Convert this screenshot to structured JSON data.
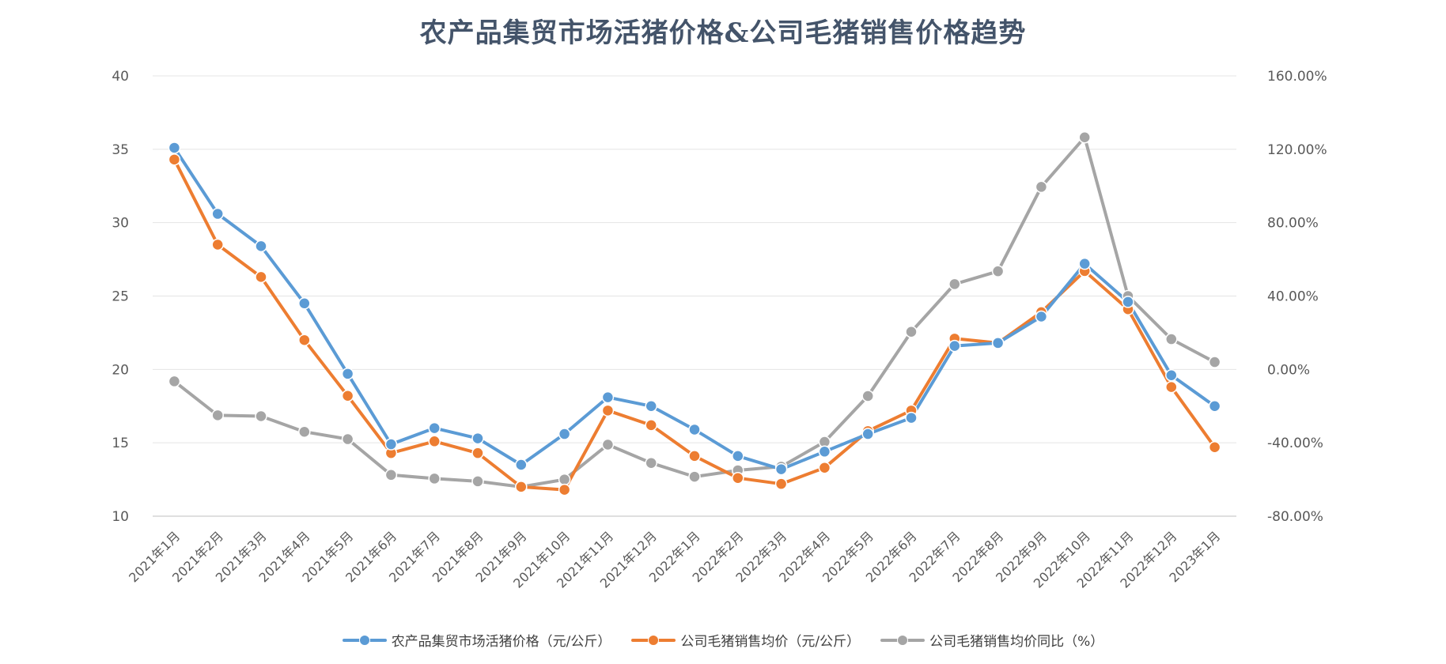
{
  "chart_data": {
    "type": "line",
    "title": "农产品集贸市场活猪价格&公司毛猪销售价格趋势",
    "categories": [
      "2021年1月",
      "2021年2月",
      "2021年3月",
      "2021年4月",
      "2021年5月",
      "2021年6月",
      "2021年7月",
      "2021年8月",
      "2021年9月",
      "2021年10月",
      "2021年11月",
      "2021年12月",
      "2022年1月",
      "2022年2月",
      "2022年3月",
      "2022年4月",
      "2022年5月",
      "2022年6月",
      "2022年7月",
      "2022年8月",
      "2022年9月",
      "2022年10月",
      "2022年11月",
      "2022年12月",
      "2023年1月"
    ],
    "y_left": {
      "ylim": [
        10,
        40
      ],
      "ticks": [
        "10",
        "15",
        "20",
        "25",
        "30",
        "35",
        "40"
      ],
      "tick_values": [
        10,
        15,
        20,
        25,
        30,
        35,
        40
      ]
    },
    "y_right": {
      "ylim": [
        -80,
        160
      ],
      "ticks": [
        "-80.00%",
        "-40.00%",
        "0.00%",
        "40.00%",
        "80.00%",
        "120.00%",
        "160.00%"
      ],
      "tick_values": [
        -80,
        -40,
        0,
        40,
        80,
        120,
        160
      ]
    },
    "grid": true,
    "legend_position": "bottom",
    "series": [
      {
        "name": "农产品集贸市场活猪价格（元/公斤）",
        "axis": "left",
        "color": "#5b9bd5",
        "values": [
          35.1,
          30.6,
          28.4,
          24.5,
          19.7,
          14.9,
          16.0,
          15.3,
          13.5,
          15.6,
          18.1,
          17.5,
          15.9,
          14.1,
          13.2,
          14.4,
          15.6,
          16.7,
          21.6,
          21.8,
          23.6,
          27.2,
          24.6,
          19.6,
          17.5
        ]
      },
      {
        "name": "公司毛猪销售均价（元/公斤）",
        "axis": "left",
        "color": "#ed7d31",
        "values": [
          34.3,
          28.5,
          26.3,
          22.0,
          18.2,
          14.3,
          15.1,
          14.3,
          12.0,
          11.8,
          17.2,
          16.2,
          14.1,
          12.6,
          12.2,
          13.3,
          15.8,
          17.2,
          22.1,
          21.8,
          23.9,
          26.7,
          24.1,
          18.8,
          14.7
        ]
      },
      {
        "name": "公司毛猪销售均价同比（%）",
        "axis": "right",
        "color": "#a5a5a5",
        "values": [
          -6.5,
          -25,
          -25.5,
          -34,
          -38,
          -57.5,
          -59.5,
          -61,
          -64,
          -60,
          -41,
          -51,
          -58.5,
          -55,
          -53,
          -39.5,
          -14.5,
          20.5,
          46.5,
          53.5,
          99.5,
          126.5,
          40,
          16.5,
          4
        ]
      }
    ]
  }
}
